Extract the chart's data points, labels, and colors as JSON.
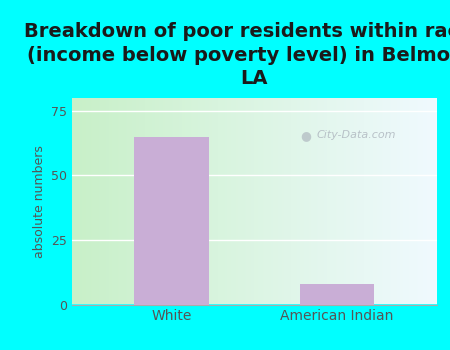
{
  "title": "Breakdown of poor residents within races\n(income below poverty level) in Belmont,\nLA",
  "categories": [
    "White",
    "American Indian"
  ],
  "values": [
    65,
    8
  ],
  "bar_color": "#c9aed6",
  "ylabel": "absolute numbers",
  "ylim": [
    0,
    80
  ],
  "yticks": [
    0,
    25,
    50,
    75
  ],
  "background_outer": "#00ffff",
  "gradient_left": "#c8f0c8",
  "gradient_right": "#f0faff",
  "title_fontsize": 14,
  "title_color": "#1a1a1a",
  "axis_label_color": "#555555",
  "tick_label_color": "#555555",
  "grid_color": "#ffffff",
  "watermark_text": "City-Data.com"
}
